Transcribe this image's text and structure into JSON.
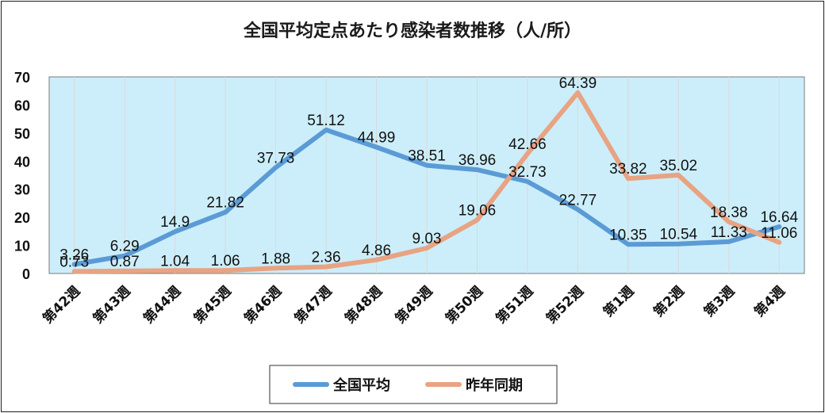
{
  "chart_data": {
    "type": "line",
    "title": "全国平均定点あたり感染者数推移（人/所）",
    "categories": [
      "第42週",
      "第43週",
      "第44週",
      "第45週",
      "第46週",
      "第47週",
      "第48週",
      "第49週",
      "第50週",
      "第51週",
      "第52週",
      "第1週",
      "第2週",
      "第3週",
      "第4週"
    ],
    "ylim": [
      0,
      70
    ],
    "yticks": [
      0,
      10,
      20,
      30,
      40,
      50,
      60,
      70
    ],
    "grid": "vertical",
    "legend_position": "bottom",
    "series": [
      {
        "name": "全国平均",
        "color": "#5B9BD5",
        "values": [
          3.26,
          6.29,
          14.9,
          21.82,
          37.73,
          51.12,
          44.99,
          38.51,
          36.96,
          32.73,
          22.77,
          10.35,
          10.54,
          11.33,
          16.64
        ],
        "labels": [
          "3.26",
          "6.29",
          "14.9",
          "21.82",
          "37.73",
          "51.12",
          "44.99",
          "38.51",
          "36.96",
          "32.73",
          "22.77",
          "10.35",
          "10.54",
          "11.33",
          "16.64"
        ]
      },
      {
        "name": "昨年同期",
        "color": "#E8A383",
        "values": [
          0.73,
          0.87,
          1.04,
          1.06,
          1.88,
          2.36,
          4.86,
          9.03,
          19.06,
          42.66,
          64.39,
          33.82,
          35.02,
          18.38,
          11.06
        ],
        "labels": [
          "0.73",
          "0.87",
          "1.04",
          "1.06",
          "1.88",
          "2.36",
          "4.86",
          "9.03",
          "19.06",
          "42.66",
          "64.39",
          "33.82",
          "35.02",
          "18.38",
          "11.06"
        ]
      }
    ],
    "plot_background": "#CCEEFA"
  }
}
